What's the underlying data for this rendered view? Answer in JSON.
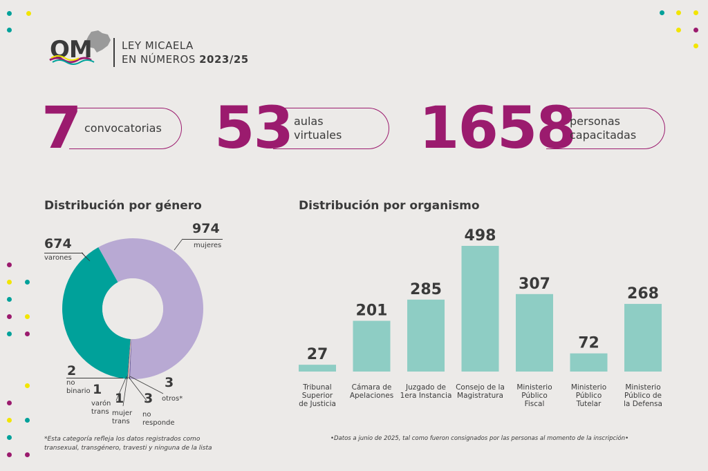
{
  "header": {
    "logo": "OM",
    "title_line1": "LEY MICAELA",
    "title_line2_prefix": "EN NÚMEROS",
    "title_line2_years": "2023/25"
  },
  "stats": [
    {
      "number": "7",
      "label_line1": "convocatorias",
      "label_line2": ""
    },
    {
      "number": "53",
      "label_line1": "aulas",
      "label_line2": "virtuales"
    },
    {
      "number": "1658",
      "label_line1": "personas",
      "label_line2": "capacitadas"
    }
  ],
  "colors": {
    "accent": "#9B1B6E",
    "teal": "#00A19A",
    "lavender": "#B8A9D3",
    "bar": "#8ECDC4",
    "yellow": "#F2E500",
    "text": "#3a3a3a",
    "background": "#ECEAE8"
  },
  "chart_data": [
    {
      "type": "pie",
      "title": "Distribución por género",
      "slices": [
        {
          "value": 974,
          "label": "mujeres",
          "color": "#B8A9D3"
        },
        {
          "value": 674,
          "label": "varones",
          "color": "#00A19A"
        },
        {
          "value": 2,
          "label": "no binario",
          "color": "#9B1B6E"
        },
        {
          "value": 1,
          "label": "varón trans",
          "color": "#6fc0b8"
        },
        {
          "value": 1,
          "label": "mujer trans",
          "color": "#F2E500"
        },
        {
          "value": 3,
          "label": "no responde",
          "color": "#d4c8e6"
        },
        {
          "value": 3,
          "label": "otros*",
          "color": "#5b4b8a"
        }
      ],
      "footnote_line1": "*Esta categoría refleja los datos registrados como",
      "footnote_line2": "transexual, transgénero, travesti y ninguna de la lista"
    },
    {
      "type": "bar",
      "title": "Distribución por organismo",
      "categories": [
        [
          "Tribunal",
          "Superior",
          "de Justicia"
        ],
        [
          "Cámara de",
          "Apelaciones"
        ],
        [
          "Juzgado de",
          "1era Instancia"
        ],
        [
          "Consejo de la",
          "Magistratura"
        ],
        [
          "Ministerio",
          "Público",
          "Fiscal"
        ],
        [
          "Ministerio",
          "Público",
          "Tutelar"
        ],
        [
          "Ministerio",
          "Público de",
          "la Defensa"
        ]
      ],
      "values": [
        27,
        201,
        285,
        498,
        307,
        72,
        268
      ],
      "ylim": [
        0,
        498
      ],
      "footnote": "•Datos a junio de 2025, tal como fueron consignados por las personas al momento de la inscripción•"
    }
  ]
}
